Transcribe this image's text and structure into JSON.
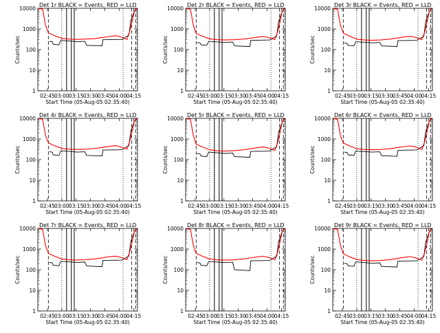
{
  "chart_data": {
    "type": "line",
    "yscale": "log",
    "ylim": [
      1,
      10000
    ],
    "yticks": [
      "1",
      "10",
      "100",
      "1000",
      "10000"
    ],
    "xticks": [
      "02:45",
      "03:00",
      "03:15",
      "03:30",
      "03:45",
      "04:00",
      "04:15"
    ],
    "xlim_minutes": [
      155,
      259
    ],
    "xlabel": "Start Time (05-Aug-05 02:35:40)",
    "ylabel": "Counts/sec",
    "colors": {
      "events": "#000000",
      "lld": "#ff0000"
    },
    "panels": [
      {
        "title": "Det 1r BLACK = Events, RED = LLD",
        "lld": {
          "t": [
            155,
            160,
            163,
            166,
            172,
            180,
            188,
            195,
            205,
            215,
            222,
            230,
            236,
            242,
            248,
            251,
            254,
            256,
            259
          ],
          "v": [
            10000,
            9000,
            1500,
            650,
            480,
            350,
            320,
            310,
            320,
            340,
            380,
            430,
            470,
            400,
            310,
            800,
            3000,
            8000,
            10000
          ]
        },
        "events": {
          "t": [
            167,
            170,
            171,
            177,
            179,
            196,
            204,
            206,
            222,
            223,
            243,
            244,
            250,
            252,
            256
          ],
          "v": [
            250,
            240,
            180,
            170,
            280,
            240,
            250,
            160,
            150,
            300,
            310,
            340,
            500,
            2500,
            8000
          ]
        },
        "solid_lines": [
          185,
          190,
          193
        ],
        "dashed_lines": [
          166,
          253,
          257
        ],
        "dotted_lines": [
          180,
          244
        ]
      },
      {
        "title": "Det 2r BLACK = Events, RED = LLD",
        "lld": {
          "t": [
            155,
            160,
            163,
            166,
            172,
            180,
            188,
            195,
            205,
            215,
            222,
            230,
            236,
            242,
            248,
            251,
            254,
            256,
            259
          ],
          "v": [
            10000,
            9000,
            1500,
            600,
            450,
            330,
            300,
            290,
            300,
            320,
            350,
            400,
            430,
            380,
            300,
            700,
            2800,
            8000,
            10000
          ]
        },
        "events": {
          "t": [
            167,
            170,
            171,
            177,
            179,
            196,
            204,
            206,
            222,
            223,
            243,
            244,
            250,
            252,
            256
          ],
          "v": [
            220,
            210,
            170,
            160,
            250,
            220,
            230,
            150,
            140,
            280,
            290,
            320,
            450,
            2200,
            7500
          ]
        },
        "solid_lines": [
          185,
          190,
          193
        ],
        "dashed_lines": [
          166,
          253,
          257
        ],
        "dotted_lines": [
          180,
          244
        ]
      },
      {
        "title": "Det 3r BLACK = Events, RED = LLD",
        "lld": {
          "t": [
            155,
            160,
            163,
            166,
            172,
            180,
            188,
            195,
            205,
            215,
            222,
            230,
            236,
            242,
            248,
            251,
            254,
            256,
            259
          ],
          "v": [
            10000,
            9000,
            1500,
            620,
            460,
            320,
            290,
            280,
            290,
            320,
            360,
            410,
            440,
            380,
            300,
            700,
            2900,
            8000,
            10000
          ]
        },
        "events": {
          "t": [
            167,
            170,
            171,
            177,
            179,
            196,
            204,
            206,
            222,
            223,
            243,
            244,
            250,
            252,
            256
          ],
          "v": [
            210,
            200,
            160,
            150,
            240,
            210,
            220,
            150,
            140,
            270,
            280,
            310,
            440,
            2300,
            7600
          ]
        },
        "solid_lines": [
          185,
          190,
          193
        ],
        "dashed_lines": [
          166,
          253,
          257
        ],
        "dotted_lines": [
          180,
          244
        ]
      },
      {
        "title": "Det 4r BLACK = Events, RED = LLD",
        "lld": {
          "t": [
            155,
            160,
            163,
            166,
            172,
            180,
            188,
            195,
            205,
            215,
            222,
            230,
            236,
            242,
            248,
            251,
            254,
            256,
            259
          ],
          "v": [
            10000,
            9000,
            1500,
            650,
            480,
            350,
            320,
            310,
            320,
            350,
            390,
            440,
            480,
            410,
            320,
            800,
            3000,
            8000,
            10000
          ]
        },
        "events": {
          "t": [
            167,
            170,
            171,
            177,
            179,
            196,
            204,
            206,
            222,
            223,
            243,
            244,
            250,
            252,
            256
          ],
          "v": [
            240,
            230,
            170,
            160,
            270,
            230,
            240,
            160,
            150,
            290,
            300,
            330,
            480,
            2400,
            7800
          ]
        },
        "solid_lines": [
          185,
          190,
          193
        ],
        "dashed_lines": [
          166,
          253,
          257
        ],
        "dotted_lines": [
          180,
          244
        ]
      },
      {
        "title": "Det 5r BLACK = Events, RED = LLD",
        "lld": {
          "t": [
            155,
            160,
            163,
            166,
            172,
            180,
            188,
            195,
            205,
            215,
            222,
            230,
            236,
            242,
            248,
            251,
            254,
            256,
            259
          ],
          "v": [
            10000,
            9000,
            1500,
            560,
            420,
            300,
            270,
            260,
            270,
            300,
            330,
            380,
            410,
            360,
            280,
            650,
            2600,
            7500,
            10000
          ]
        },
        "events": {
          "t": [
            167,
            170,
            171,
            177,
            179,
            196,
            204,
            206,
            222,
            223,
            243,
            244,
            250,
            252,
            256
          ],
          "v": [
            200,
            190,
            150,
            140,
            230,
            200,
            210,
            140,
            130,
            250,
            260,
            290,
            420,
            2100,
            7200
          ]
        },
        "solid_lines": [
          185,
          190,
          193
        ],
        "dashed_lines": [
          166,
          253,
          257
        ],
        "dotted_lines": [
          180,
          244
        ]
      },
      {
        "title": "Det 6r BLACK = Events, RED = LLD",
        "lld": {
          "t": [
            155,
            160,
            163,
            166,
            172,
            180,
            188,
            195,
            205,
            215,
            222,
            230,
            236,
            242,
            248,
            251,
            254,
            256,
            259
          ],
          "v": [
            10000,
            9000,
            1500,
            640,
            470,
            340,
            310,
            300,
            310,
            340,
            380,
            430,
            460,
            400,
            310,
            750,
            2900,
            8000,
            10000
          ]
        },
        "events": {
          "t": [
            167,
            170,
            171,
            177,
            179,
            196,
            204,
            206,
            222,
            223,
            243,
            244,
            250,
            252,
            256
          ],
          "v": [
            230,
            220,
            170,
            160,
            260,
            230,
            240,
            155,
            145,
            285,
            295,
            325,
            470,
            2350,
            7700
          ]
        },
        "solid_lines": [
          185,
          190,
          193
        ],
        "dashed_lines": [
          166,
          253,
          257
        ],
        "dotted_lines": [
          180,
          244
        ]
      },
      {
        "title": "Det 7r BLACK = Events, RED = LLD",
        "lld": {
          "t": [
            155,
            160,
            163,
            166,
            172,
            180,
            188,
            195,
            205,
            215,
            222,
            230,
            236,
            242,
            248,
            251,
            254,
            256,
            259
          ],
          "v": [
            10000,
            9000,
            1500,
            630,
            460,
            330,
            300,
            295,
            305,
            335,
            375,
            425,
            455,
            395,
            305,
            740,
            2850,
            8000,
            10000
          ]
        },
        "events": {
          "t": [
            167,
            170,
            171,
            177,
            179,
            196,
            204,
            206,
            222,
            223,
            243,
            244,
            250,
            252,
            256
          ],
          "v": [
            225,
            215,
            165,
            155,
            255,
            225,
            235,
            150,
            140,
            280,
            290,
            320,
            460,
            2300,
            7600
          ]
        },
        "solid_lines": [
          185,
          190,
          193
        ],
        "dashed_lines": [
          166,
          253,
          257
        ],
        "dotted_lines": [
          180,
          244
        ]
      },
      {
        "title": "Det 8r BLACK = Events, RED = LLD",
        "lld": {
          "t": [
            155,
            160,
            163,
            166,
            172,
            180,
            188,
            195,
            205,
            215,
            222,
            230,
            236,
            242,
            248,
            251,
            254,
            256,
            259
          ],
          "v": [
            10000,
            9000,
            1500,
            620,
            460,
            330,
            300,
            290,
            300,
            330,
            370,
            420,
            450,
            390,
            300,
            720,
            2800,
            8000,
            10000
          ]
        },
        "events": {
          "t": [
            167,
            170,
            171,
            177,
            179,
            196,
            204,
            206,
            222,
            223,
            243,
            244,
            250,
            252,
            256
          ],
          "v": [
            220,
            210,
            165,
            155,
            250,
            220,
            230,
            100,
            90,
            270,
            280,
            310,
            450,
            2250,
            7500
          ]
        },
        "solid_lines": [
          185,
          190,
          193
        ],
        "dashed_lines": [
          166,
          253,
          257
        ],
        "dotted_lines": [
          180,
          244
        ]
      },
      {
        "title": "Det 9r BLACK = Events, RED = LLD",
        "lld": {
          "t": [
            155,
            160,
            163,
            166,
            172,
            180,
            188,
            195,
            205,
            215,
            222,
            230,
            236,
            242,
            248,
            251,
            254,
            256,
            259
          ],
          "v": [
            10000,
            9000,
            1500,
            600,
            430,
            310,
            280,
            270,
            280,
            310,
            350,
            400,
            430,
            370,
            290,
            680,
            2700,
            7800,
            10000
          ]
        },
        "events": {
          "t": [
            167,
            170,
            171,
            177,
            179,
            196,
            204,
            206,
            222,
            223,
            243,
            244,
            250,
            252,
            256
          ],
          "v": [
            205,
            195,
            155,
            145,
            240,
            205,
            215,
            145,
            135,
            260,
            270,
            300,
            430,
            2200,
            7400
          ]
        },
        "solid_lines": [
          185,
          190,
          193
        ],
        "dashed_lines": [
          166,
          253,
          257
        ],
        "dotted_lines": [
          180,
          244
        ]
      }
    ]
  }
}
